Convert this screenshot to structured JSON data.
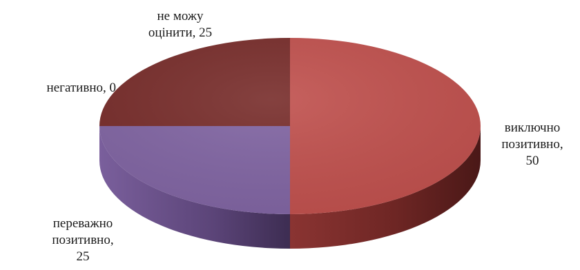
{
  "chart_data": {
    "type": "pie",
    "style": "3d",
    "categories": [
      "виключно позитивно",
      "переважно позитивно",
      "негативно",
      "не можу оцінити"
    ],
    "values": [
      50,
      25,
      0,
      25
    ],
    "colors": [
      "#c0504d",
      "#8064a2",
      "#4f81bd",
      "#772c2a"
    ],
    "data_labels": [
      {
        "lines": [
          "виключно",
          "позитивно,",
          "50"
        ]
      },
      {
        "lines": [
          "переважно",
          "позитивно,",
          "25"
        ]
      },
      {
        "lines": [
          "негативно, 0"
        ]
      },
      {
        "lines": [
          "не можу",
          "оцінити, 25"
        ]
      }
    ],
    "legend": "none"
  }
}
